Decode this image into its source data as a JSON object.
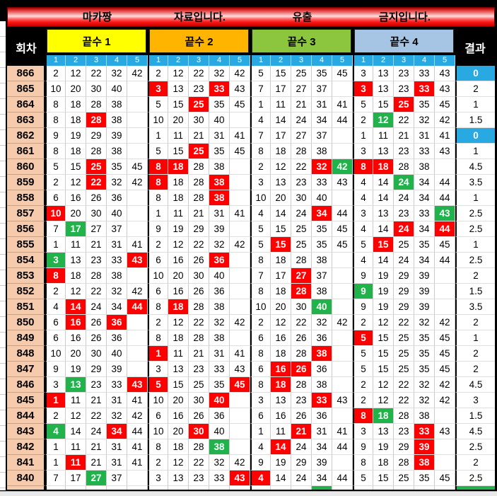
{
  "banner": {
    "items": [
      "마카짱",
      "자료입니다.",
      "유출",
      "금지입니다."
    ]
  },
  "header": {
    "round_label": "회차",
    "result_label": "결과",
    "groups": [
      {
        "label": "끝수 1",
        "color": "#FFFF00"
      },
      {
        "label": "끝수 2",
        "color": "#FFB400"
      },
      {
        "label": "끝수 3",
        "color": "#8CC63F"
      },
      {
        "label": "끝수 4",
        "color": "#A6C4E4"
      }
    ],
    "sub_columns": [
      "1",
      "2",
      "3",
      "4",
      "5"
    ]
  },
  "colors": {
    "highlight_red": "#FF0000",
    "highlight_green": "#21B24C",
    "highlight_blue": "#29A9E2",
    "round_bg": "#F6CBAD",
    "subheader_blue": "#29A9E2"
  },
  "rows": [
    {
      "n": "866",
      "c": [
        "2",
        "12",
        "22",
        "32",
        "42",
        "2",
        "12",
        "22",
        "32",
        "42",
        "5",
        "15",
        "25",
        "35",
        "45",
        "3",
        "13",
        "23",
        "33",
        "43"
      ],
      "r": "0",
      "rh": "b"
    },
    {
      "n": "865",
      "c": [
        "10",
        "20",
        "30",
        "40",
        "",
        "3r",
        "13",
        "23",
        "33r",
        "43",
        "7",
        "17",
        "27",
        "37",
        "",
        "3r",
        "13",
        "23",
        "33r",
        "43"
      ],
      "r": "2",
      "rh": ""
    },
    {
      "n": "864",
      "c": [
        "8",
        "18",
        "28",
        "38",
        "",
        "5",
        "15",
        "25r",
        "35",
        "45",
        "1",
        "11",
        "21",
        "31",
        "41",
        "5",
        "15",
        "25r",
        "35",
        "45"
      ],
      "r": "1",
      "rh": ""
    },
    {
      "n": "863",
      "c": [
        "8",
        "18",
        "28r",
        "38",
        "",
        "10",
        "20",
        "30",
        "40",
        "",
        "4",
        "14",
        "24",
        "34",
        "44",
        "2",
        "12g",
        "22",
        "32",
        "42"
      ],
      "r": "1.5",
      "rh": ""
    },
    {
      "n": "862",
      "c": [
        "9",
        "19",
        "29",
        "39",
        "",
        "1",
        "11",
        "21",
        "31",
        "41",
        "7",
        "17",
        "27",
        "37",
        "",
        "1",
        "11",
        "21",
        "31",
        "41"
      ],
      "r": "0",
      "rh": "b"
    },
    {
      "n": "861",
      "c": [
        "8",
        "18",
        "28",
        "38",
        "",
        "5",
        "15",
        "25r",
        "35",
        "45",
        "8",
        "18",
        "28",
        "38",
        "",
        "3",
        "13",
        "23",
        "33",
        "43"
      ],
      "r": "1",
      "rh": ""
    },
    {
      "n": "860",
      "c": [
        "5",
        "15",
        "25r",
        "35",
        "45",
        "8r",
        "18r",
        "28",
        "38",
        "",
        "2",
        "12",
        "22",
        "32r",
        "42g",
        "8r",
        "18r",
        "28",
        "38",
        ""
      ],
      "r": "4.5",
      "rh": ""
    },
    {
      "n": "859",
      "c": [
        "2",
        "12",
        "22r",
        "32",
        "42",
        "8r",
        "18",
        "28",
        "38r",
        "",
        "3",
        "13",
        "23",
        "33",
        "43",
        "4",
        "14",
        "24g",
        "34",
        "44"
      ],
      "r": "3.5",
      "rh": ""
    },
    {
      "n": "858",
      "c": [
        "6",
        "16",
        "26",
        "36",
        "",
        "8",
        "18",
        "28",
        "38r",
        "",
        "10",
        "20",
        "30",
        "40",
        "",
        "4",
        "14",
        "24",
        "34",
        "44"
      ],
      "r": "1",
      "rh": ""
    },
    {
      "n": "857",
      "c": [
        "10r",
        "20",
        "30",
        "40",
        "",
        "1",
        "11",
        "21",
        "31",
        "41",
        "4",
        "14",
        "24",
        "34r",
        "44",
        "3",
        "13",
        "23",
        "33",
        "43g"
      ],
      "r": "2.5",
      "rh": ""
    },
    {
      "n": "856",
      "c": [
        "7",
        "17g",
        "27",
        "37",
        "",
        "9",
        "19",
        "29",
        "39",
        "",
        "5",
        "15",
        "25",
        "35",
        "45",
        "4",
        "14",
        "24r",
        "34",
        "44r"
      ],
      "r": "2.5",
      "rh": ""
    },
    {
      "n": "855",
      "c": [
        "1",
        "11",
        "21",
        "31",
        "41",
        "2",
        "12",
        "22",
        "32",
        "42",
        "5",
        "15r",
        "25",
        "35",
        "45",
        "5",
        "15r",
        "25",
        "35",
        "45"
      ],
      "r": "1",
      "rh": ""
    },
    {
      "n": "854",
      "c": [
        "3g",
        "13",
        "23",
        "33",
        "43r",
        "6",
        "16",
        "26",
        "36r",
        "",
        "8",
        "18",
        "28",
        "38",
        "",
        "4",
        "14",
        "24",
        "34",
        "44"
      ],
      "r": "2.5",
      "rh": ""
    },
    {
      "n": "853",
      "c": [
        "8r",
        "18",
        "28",
        "38",
        "",
        "10",
        "20",
        "30",
        "40",
        "",
        "7",
        "17",
        "27r",
        "37",
        "",
        "9",
        "19",
        "29",
        "39",
        ""
      ],
      "r": "2",
      "rh": ""
    },
    {
      "n": "852",
      "c": [
        "2",
        "12",
        "22",
        "32",
        "42",
        "6",
        "16",
        "26",
        "36",
        "",
        "8",
        "18",
        "28r",
        "38",
        "",
        "9g",
        "19",
        "29",
        "39",
        ""
      ],
      "r": "1.5",
      "rh": ""
    },
    {
      "n": "851",
      "c": [
        "4",
        "14r",
        "24",
        "34",
        "44r",
        "8",
        "18r",
        "28",
        "38",
        "",
        "10",
        "20",
        "30",
        "40g",
        "",
        "9",
        "19",
        "29",
        "39",
        ""
      ],
      "r": "3.5",
      "rh": ""
    },
    {
      "n": "850",
      "c": [
        "6",
        "16r",
        "26",
        "36r",
        "",
        "2",
        "12",
        "22",
        "32",
        "42",
        "2",
        "12",
        "22",
        "32",
        "42",
        "2",
        "12",
        "22",
        "32",
        "42"
      ],
      "r": "2",
      "rh": ""
    },
    {
      "n": "849",
      "c": [
        "6",
        "16",
        "26",
        "36",
        "",
        "8",
        "18",
        "28",
        "38",
        "",
        "6",
        "16",
        "26",
        "36",
        "",
        "5r",
        "15",
        "25",
        "35",
        "45"
      ],
      "r": "1",
      "rh": ""
    },
    {
      "n": "848",
      "c": [
        "10",
        "20",
        "30",
        "40",
        "",
        "1r",
        "11",
        "21",
        "31",
        "41",
        "8",
        "18",
        "28",
        "38r",
        "",
        "5",
        "15",
        "25",
        "35",
        "45"
      ],
      "r": "2",
      "rh": ""
    },
    {
      "n": "847",
      "c": [
        "9",
        "19",
        "29",
        "39",
        "",
        "3",
        "13",
        "23",
        "33",
        "43",
        "6",
        "16r",
        "26r",
        "36",
        "",
        "5",
        "15",
        "25",
        "35",
        "45"
      ],
      "r": "2",
      "rh": ""
    },
    {
      "n": "846",
      "c": [
        "3",
        "13g",
        "23",
        "33",
        "43r",
        "5r",
        "15",
        "25",
        "35",
        "45r",
        "8",
        "18r",
        "28",
        "38",
        "",
        "2",
        "12",
        "22",
        "32",
        "42"
      ],
      "r": "4.5",
      "rh": ""
    },
    {
      "n": "845",
      "c": [
        "1r",
        "11",
        "21",
        "31",
        "41",
        "10",
        "20",
        "30",
        "40r",
        "",
        "3",
        "13",
        "23",
        "33r",
        "43",
        "2",
        "12",
        "22",
        "32",
        "42"
      ],
      "r": "3",
      "rh": ""
    },
    {
      "n": "844",
      "c": [
        "2",
        "12",
        "22",
        "32",
        "42",
        "6",
        "16",
        "26",
        "36",
        "",
        "6",
        "16",
        "26",
        "36",
        "",
        "8r",
        "18g",
        "28",
        "38",
        ""
      ],
      "r": "1.5",
      "rh": ""
    },
    {
      "n": "843",
      "c": [
        "4g",
        "14",
        "24",
        "34r",
        "44",
        "10",
        "20",
        "30r",
        "40",
        "",
        "1",
        "11",
        "21r",
        "31",
        "41",
        "3",
        "13",
        "23",
        "33r",
        "43"
      ],
      "r": "4.5",
      "rh": ""
    },
    {
      "n": "842",
      "c": [
        "1",
        "11",
        "21",
        "31",
        "41",
        "8",
        "18",
        "28",
        "38g",
        "",
        "4",
        "14r",
        "24",
        "34",
        "44",
        "9",
        "19",
        "29",
        "39r",
        ""
      ],
      "r": "2.5",
      "rh": ""
    },
    {
      "n": "841",
      "c": [
        "1",
        "11r",
        "21",
        "31",
        "41",
        "2",
        "12",
        "22",
        "32",
        "42",
        "9",
        "19",
        "29",
        "39",
        "",
        "8",
        "18",
        "28",
        "38r",
        ""
      ],
      "r": "2",
      "rh": ""
    },
    {
      "n": "840",
      "c": [
        "7",
        "17",
        "27g",
        "37",
        "",
        "3",
        "13",
        "23",
        "33",
        "43r",
        "4r",
        "14",
        "24",
        "34",
        "44",
        "5",
        "15",
        "25",
        "35",
        "45"
      ],
      "r": "2.5",
      "rh": ""
    }
  ],
  "partial_row": {
    "green_cell_indices": [
      13
    ],
    "result_green": true
  }
}
